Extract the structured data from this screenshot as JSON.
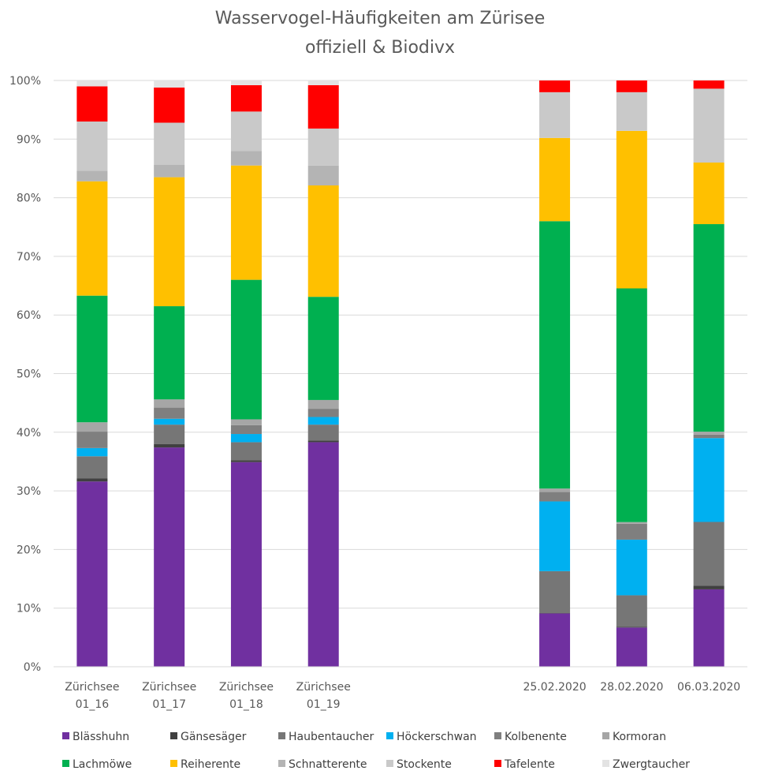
{
  "chart_data": {
    "type": "bar",
    "stacked": true,
    "normalized": true,
    "title_lines": [
      "Wasservogel-Häufigkeiten am Zürisee",
      "offiziell & Biodivx"
    ],
    "xlabel": "",
    "ylabel": "",
    "ylim": [
      0,
      100
    ],
    "yticks": [
      "0%",
      "10%",
      "20%",
      "30%",
      "40%",
      "50%",
      "60%",
      "70%",
      "80%",
      "90%",
      "100%"
    ],
    "grid": true,
    "legend_position": "bottom",
    "categories": [
      {
        "line1": "Zürichsee",
        "line2": "01_16"
      },
      {
        "line1": "Zürichsee",
        "line2": "01_17"
      },
      {
        "line1": "Zürichsee",
        "line2": "01_18"
      },
      {
        "line1": "Zürichsee",
        "line2": "01_19"
      },
      {
        "line1": "",
        "line2": ""
      },
      {
        "line1": "",
        "line2": ""
      },
      {
        "line1": "25.02.2020",
        "line2": ""
      },
      {
        "line1": "28.02.2020",
        "line2": ""
      },
      {
        "line1": "06.03.2020",
        "line2": ""
      }
    ],
    "series": [
      {
        "name": "Blässhuhn",
        "color": "#7030a0",
        "values": [
          31.6,
          37.4,
          34.9,
          38.3,
          null,
          null,
          9.1,
          6.7,
          13.2
        ]
      },
      {
        "name": "Gänsesäger",
        "color": "#404040",
        "values": [
          0.5,
          0.6,
          0.3,
          0.3,
          null,
          null,
          0.1,
          0.1,
          0.6
        ]
      },
      {
        "name": "Haubentaucher",
        "color": "#767676",
        "values": [
          3.8,
          3.3,
          3.1,
          2.7,
          null,
          null,
          7.1,
          5.4,
          10.9
        ]
      },
      {
        "name": "Höckerschwan",
        "color": "#00b0f0",
        "values": [
          1.4,
          1.0,
          1.4,
          1.3,
          null,
          null,
          11.9,
          9.5,
          14.3
        ]
      },
      {
        "name": "Kolbenente",
        "color": "#7f7f7f",
        "values": [
          2.8,
          1.9,
          1.5,
          1.4,
          null,
          null,
          1.6,
          2.7,
          0.6
        ]
      },
      {
        "name": "Kormoran",
        "color": "#a6a6a6",
        "values": [
          1.6,
          1.4,
          1.0,
          1.5,
          null,
          null,
          0.6,
          0.3,
          0.5
        ]
      },
      {
        "name": "Lachmöwe",
        "color": "#00b050",
        "values": [
          21.6,
          15.9,
          23.8,
          17.6,
          null,
          null,
          45.6,
          39.9,
          35.4
        ]
      },
      {
        "name": "Reiherente",
        "color": "#ffc000",
        "values": [
          19.5,
          22.0,
          19.5,
          19.0,
          null,
          null,
          14.2,
          26.9,
          10.5
        ]
      },
      {
        "name": "Schnatterente",
        "color": "#b4b4b4",
        "values": [
          1.8,
          2.1,
          2.5,
          3.4,
          null,
          null,
          0.0,
          0.0,
          0.0
        ]
      },
      {
        "name": "Stockente",
        "color": "#c9c9c9",
        "values": [
          8.4,
          7.2,
          6.7,
          6.3,
          null,
          null,
          7.8,
          6.6,
          12.6
        ]
      },
      {
        "name": "Tafelente",
        "color": "#ff0000",
        "values": [
          6.0,
          6.0,
          4.5,
          7.4,
          null,
          null,
          2.0,
          2.0,
          1.4
        ]
      },
      {
        "name": "Zwergtaucher",
        "color": "#e3e3e3",
        "values": [
          1.0,
          1.2,
          0.8,
          0.8,
          null,
          null,
          0.0,
          0.0,
          0.0
        ]
      }
    ]
  }
}
